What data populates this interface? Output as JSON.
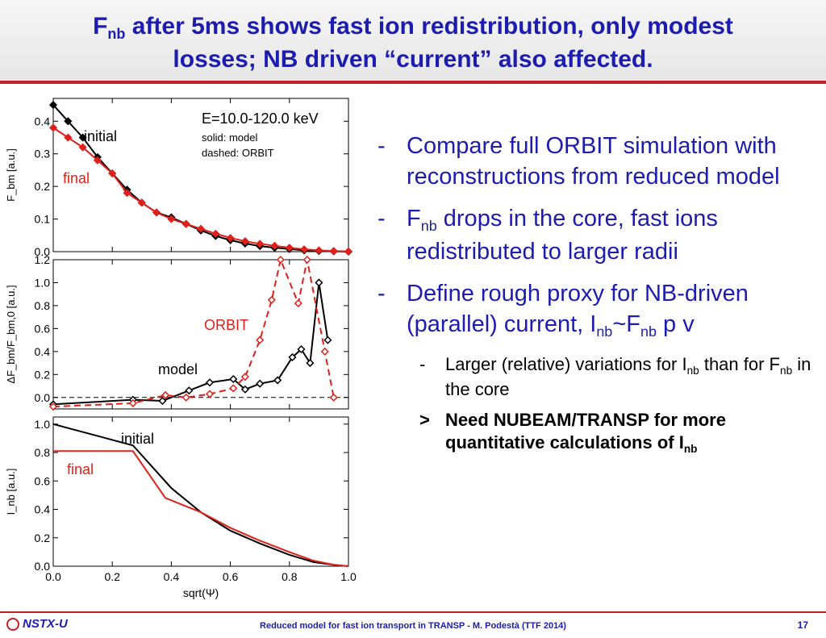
{
  "title": {
    "line1_pre": "F",
    "line1_sub": "nb",
    "line1_post": " after 5ms shows fast ion redistribution, only modest",
    "line2": "losses; NB driven “current” also affected."
  },
  "bullets": {
    "b1": "Compare full ORBIT simulation with reconstructions from reduced model",
    "b2_pre": "F",
    "b2_sub": "nb",
    "b2_post": " drops in the core, fast ions redistributed to larger radii",
    "b3_pre": "Define rough proxy for NB-driven (parallel) current, I",
    "b3_sub1": "nb",
    "b3_mid": "~F",
    "b3_sub2": "nb",
    "b3_post": " p v",
    "sub1_pre": "Larger (relative) variations for I",
    "sub1_sub1": "nb",
    "sub1_mid": " than for F",
    "sub1_sub2": "nb",
    "sub1_post": " in the core",
    "sub2_pre": "Need NUBEAM/TRANSP for more quantitative calculations of I",
    "sub2_sub": "nb",
    "dash": "-",
    "arrow": ">"
  },
  "footer": {
    "logo": "NSTX-U",
    "text": "Reduced model for fast ion transport in TRANSP - M. Podestà (TTF 2014)",
    "page": "17"
  },
  "colors": {
    "title_blue": "#1c1cb0",
    "accent_red": "#c0202a",
    "series_black": "#000000",
    "series_red": "#e0201a"
  },
  "chart_data": [
    {
      "type": "line",
      "annotation_main": "E=10.0-120.0 keV",
      "annotation_solid": "solid: model",
      "annotation_dashed": "dashed: ORBIT",
      "ylabel": "F_bm [a.u.]",
      "ylim": [
        0,
        0.47
      ],
      "yticks": [
        "0.0",
        "0.1",
        "0.2",
        "0.3",
        "0.4"
      ],
      "series": [
        {
          "name": "initial",
          "color": "#000000",
          "x": [
            0.0,
            0.05,
            0.1,
            0.15,
            0.2,
            0.25,
            0.3,
            0.35,
            0.4,
            0.45,
            0.5,
            0.55,
            0.6,
            0.65,
            0.7,
            0.75,
            0.8,
            0.85,
            0.9,
            0.95,
            1.0
          ],
          "y": [
            0.45,
            0.4,
            0.35,
            0.29,
            0.24,
            0.19,
            0.15,
            0.12,
            0.105,
            0.085,
            0.065,
            0.048,
            0.035,
            0.025,
            0.017,
            0.012,
            0.008,
            0.004,
            0.002,
            0.001,
            0.0
          ]
        },
        {
          "name": "final",
          "color": "#e0201a",
          "x": [
            0.0,
            0.05,
            0.1,
            0.15,
            0.2,
            0.25,
            0.3,
            0.35,
            0.4,
            0.45,
            0.5,
            0.55,
            0.6,
            0.65,
            0.7,
            0.75,
            0.8,
            0.85,
            0.9,
            0.95,
            1.0
          ],
          "y": [
            0.38,
            0.35,
            0.32,
            0.28,
            0.24,
            0.18,
            0.15,
            0.12,
            0.1,
            0.085,
            0.07,
            0.055,
            0.042,
            0.032,
            0.024,
            0.018,
            0.012,
            0.007,
            0.004,
            0.002,
            0.001
          ]
        }
      ]
    },
    {
      "type": "line",
      "ylabel": "ΔF_bm/F_bm,0 [a.u.]",
      "ylim": [
        -0.1,
        1.2
      ],
      "yticks": [
        "0.0",
        "0.2",
        "0.4",
        "0.6",
        "0.8",
        "1.0",
        "1.2"
      ],
      "series": [
        {
          "name": "model",
          "color": "#000000",
          "x": [
            0.0,
            0.27,
            0.37,
            0.46,
            0.53,
            0.61,
            0.65,
            0.7,
            0.76,
            0.81,
            0.84,
            0.87,
            0.9,
            0.93
          ],
          "y": [
            -0.06,
            -0.02,
            -0.03,
            0.06,
            0.13,
            0.16,
            0.07,
            0.12,
            0.15,
            0.35,
            0.42,
            0.3,
            1.0,
            0.5
          ]
        },
        {
          "name": "ORBIT",
          "color": "#e0201a",
          "x": [
            0.0,
            0.27,
            0.38,
            0.45,
            0.53,
            0.61,
            0.65,
            0.7,
            0.74,
            0.77,
            0.83,
            0.86,
            0.92,
            0.95
          ],
          "y": [
            -0.08,
            -0.05,
            0.02,
            0.0,
            0.03,
            0.08,
            0.18,
            0.5,
            0.85,
            1.2,
            0.82,
            1.2,
            0.4,
            0.0
          ]
        }
      ]
    },
    {
      "type": "line",
      "xlabel": "sqrt(Ψ)",
      "ylabel": "I_nb [a.u.]",
      "ylim": [
        0,
        1.05
      ],
      "xlim": [
        0,
        1
      ],
      "yticks": [
        "0.0",
        "0.2",
        "0.4",
        "0.6",
        "0.8",
        "1.0"
      ],
      "xticks": [
        "0.0",
        "0.2",
        "0.4",
        "0.6",
        "0.8",
        "1.0"
      ],
      "series": [
        {
          "name": "initial",
          "color": "#000000",
          "x": [
            0.0,
            0.27,
            0.4,
            0.5,
            0.6,
            0.7,
            0.8,
            0.88,
            0.95,
            1.0
          ],
          "y": [
            1.0,
            0.85,
            0.55,
            0.38,
            0.25,
            0.16,
            0.08,
            0.03,
            0.01,
            0.0
          ]
        },
        {
          "name": "final",
          "color": "#e0201a",
          "x": [
            0.0,
            0.27,
            0.38,
            0.5,
            0.6,
            0.7,
            0.8,
            0.88,
            0.95,
            1.0
          ],
          "y": [
            0.81,
            0.81,
            0.48,
            0.38,
            0.27,
            0.18,
            0.1,
            0.04,
            0.01,
            0.0
          ]
        }
      ]
    }
  ]
}
